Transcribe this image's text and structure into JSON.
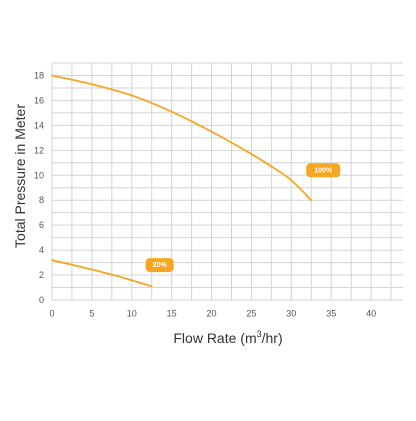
{
  "chart_data": {
    "type": "line",
    "title": "",
    "xlabel": "Flow Rate (m",
    "xlabel_sup": "3",
    "xlabel_suffix": "/hr)",
    "ylabel": "Total Pressure in Meter",
    "xlim": [
      0,
      44
    ],
    "ylim": [
      0,
      19
    ],
    "x_ticks": [
      0,
      5,
      10,
      15,
      20,
      25,
      30,
      35,
      40
    ],
    "y_ticks": [
      0,
      2,
      4,
      6,
      8,
      10,
      12,
      14,
      16,
      18
    ],
    "grid": true,
    "series": [
      {
        "name": "100%",
        "color": "#f5a623",
        "points": [
          [
            0,
            18.0
          ],
          [
            5,
            17.3
          ],
          [
            10,
            16.4
          ],
          [
            15,
            15.1
          ],
          [
            20,
            13.5
          ],
          [
            25,
            11.7
          ],
          [
            28,
            10.5
          ],
          [
            30,
            9.6
          ],
          [
            32.5,
            8.0
          ]
        ]
      },
      {
        "name": "20%",
        "color": "#f5a623",
        "points": [
          [
            0,
            3.2
          ],
          [
            4,
            2.6
          ],
          [
            8,
            1.95
          ],
          [
            12.5,
            1.1
          ]
        ]
      }
    ],
    "annotations": [
      {
        "text": "100%",
        "x": 34,
        "y": 10.4,
        "color": "#f5a623",
        "text_color": "#ffffff"
      },
      {
        "text": "20%",
        "x": 13.5,
        "y": 2.8,
        "color": "#f5a623",
        "text_color": "#ffffff"
      }
    ]
  },
  "colors": {
    "grid": "#d4d4d4",
    "axis_text": "#555555",
    "label_text": "#333333",
    "series": "#f5a623"
  }
}
